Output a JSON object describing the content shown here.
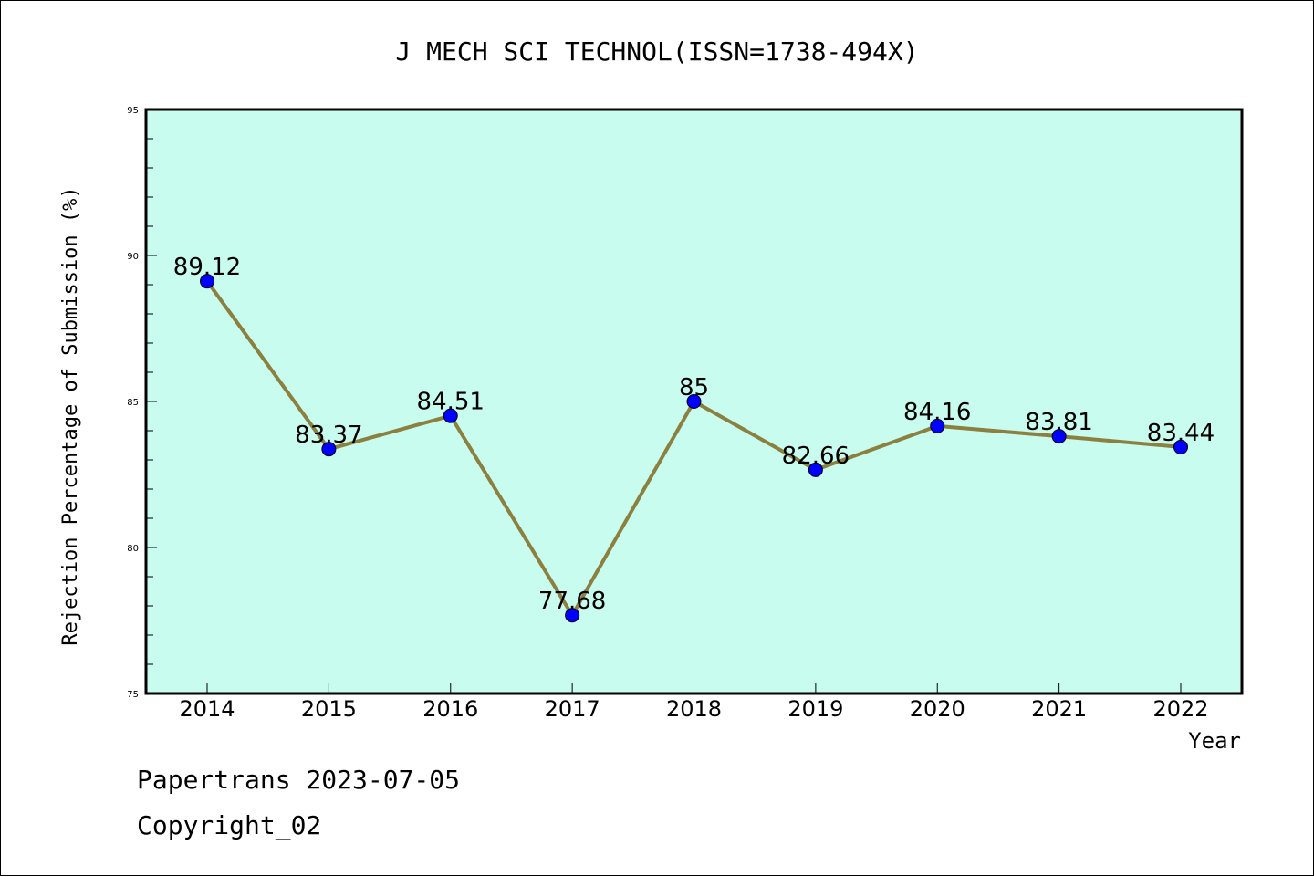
{
  "chart_data": {
    "type": "line",
    "title": "J MECH SCI TECHNOL(ISSN=1738-494X)",
    "xlabel": "Year",
    "ylabel": "Rejection Percentage of Submission (%)",
    "categories": [
      "2014",
      "2015",
      "2016",
      "2017",
      "2018",
      "2019",
      "2020",
      "2021",
      "2022"
    ],
    "series": [
      {
        "values": [
          89.12,
          83.37,
          84.51,
          77.68,
          85,
          82.66,
          84.16,
          83.81,
          83.44
        ],
        "labels": [
          "89.12",
          "83.37",
          "84.51",
          "77.68",
          "85",
          "82.66",
          "84.16",
          "83.81",
          "83.44"
        ]
      }
    ],
    "ylim": [
      75,
      95
    ],
    "yticks": [
      "75",
      "80",
      "85",
      "90",
      "95"
    ],
    "grid": false,
    "colors": {
      "plot_background": "#c8fcee",
      "line": "#8b8040",
      "marker": "#0000ff"
    }
  },
  "footer": {
    "line1": "Papertrans 2023-07-05",
    "line2": "Copyright_02"
  }
}
